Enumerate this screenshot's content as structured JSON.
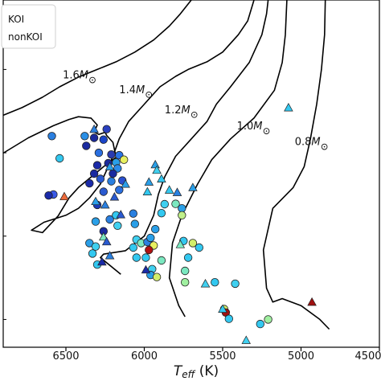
{
  "chart_data": {
    "type": "scatter",
    "title": "",
    "xlabel": "T_eff (K)",
    "xlabel_main": "T",
    "xlabel_sub": "eff",
    "xlabel_unit": " (K)",
    "x_reversed": true,
    "xlim": [
      6900,
      4500
    ],
    "ylim": [
      0,
      1
    ],
    "xticks": [
      6500,
      6000,
      5500,
      5000,
      4500
    ],
    "grid": false,
    "legend": {
      "placement": "top-left",
      "entries": [
        "KOI",
        "nonKOI"
      ]
    },
    "tracks": [
      {
        "label": "1.6M",
        "label_at": [
          6520,
          0.774
        ],
        "points": [
          [
            6900,
            0.668
          ],
          [
            6780,
            0.69
          ],
          [
            6650,
            0.72
          ],
          [
            6540,
            0.75
          ],
          [
            6420,
            0.778
          ],
          [
            6300,
            0.8
          ],
          [
            6180,
            0.822
          ],
          [
            6060,
            0.85
          ],
          [
            5940,
            0.885
          ],
          [
            5840,
            0.925
          ],
          [
            5770,
            0.96
          ],
          [
            5700,
            1.0
          ]
        ]
      },
      {
        "label": "1.4M",
        "label_at": [
          6160,
          0.732
        ],
        "points": [
          [
            6900,
            0.559
          ],
          [
            6740,
            0.603
          ],
          [
            6580,
            0.638
          ],
          [
            6480,
            0.656
          ],
          [
            6420,
            0.664
          ],
          [
            6340,
            0.66
          ],
          [
            6300,
            0.64
          ],
          [
            6320,
            0.62
          ],
          [
            6290,
            0.613
          ],
          [
            6250,
            0.619
          ],
          [
            6240,
            0.61
          ],
          [
            6200,
            0.59
          ],
          [
            6180,
            0.547
          ],
          [
            6260,
            0.52
          ],
          [
            6420,
            0.46
          ],
          [
            6480,
            0.43
          ],
          [
            6550,
            0.378
          ],
          [
            6650,
            0.33
          ],
          [
            6720,
            0.337
          ],
          [
            6640,
            0.36
          ],
          [
            6500,
            0.38
          ],
          [
            6420,
            0.4
          ],
          [
            6350,
            0.43
          ],
          [
            6280,
            0.47
          ],
          [
            6200,
            0.55
          ],
          [
            6160,
            0.6
          ],
          [
            6100,
            0.65
          ],
          [
            6000,
            0.7
          ],
          [
            5900,
            0.75
          ],
          [
            5800,
            0.78
          ],
          [
            5720,
            0.8
          ],
          [
            5600,
            0.822
          ],
          [
            5500,
            0.85
          ],
          [
            5400,
            0.9
          ],
          [
            5340,
            0.94
          ],
          [
            5300,
            1.0
          ]
        ]
      },
      {
        "label": "1.2M",
        "label_at": [
          5870,
          0.674
        ],
        "points": [
          [
            6150,
            0.21
          ],
          [
            6280,
            0.258
          ],
          [
            6260,
            0.268
          ],
          [
            6120,
            0.278
          ],
          [
            6000,
            0.32
          ],
          [
            5940,
            0.38
          ],
          [
            5910,
            0.44
          ],
          [
            5870,
            0.49
          ],
          [
            5800,
            0.55
          ],
          [
            5700,
            0.6
          ],
          [
            5600,
            0.65
          ],
          [
            5540,
            0.7
          ],
          [
            5450,
            0.75
          ],
          [
            5330,
            0.82
          ],
          [
            5250,
            0.9
          ],
          [
            5220,
            0.96
          ],
          [
            5210,
            1.0
          ]
        ]
      },
      {
        "label": "1.0M",
        "label_at": [
          5410,
          0.627
        ],
        "points": [
          [
            5740,
            0.088
          ],
          [
            5780,
            0.12
          ],
          [
            5840,
            0.2
          ],
          [
            5820,
            0.3
          ],
          [
            5760,
            0.38
          ],
          [
            5660,
            0.47
          ],
          [
            5570,
            0.54
          ],
          [
            5450,
            0.6
          ],
          [
            5300,
            0.66
          ],
          [
            5170,
            0.74
          ],
          [
            5120,
            0.82
          ],
          [
            5100,
            0.9
          ],
          [
            5090,
            1.0
          ]
        ]
      },
      {
        "label": "0.8M",
        "label_at": [
          5040,
          0.582
        ],
        "points": [
          [
            4820,
            0.052
          ],
          [
            4880,
            0.08
          ],
          [
            5000,
            0.12
          ],
          [
            5120,
            0.14
          ],
          [
            5180,
            0.13
          ],
          [
            5220,
            0.17
          ],
          [
            5240,
            0.28
          ],
          [
            5180,
            0.4
          ],
          [
            5050,
            0.46
          ],
          [
            4980,
            0.52
          ],
          [
            4940,
            0.6
          ],
          [
            4900,
            0.7
          ],
          [
            4870,
            0.8
          ],
          [
            4850,
            0.9
          ],
          [
            4845,
            1.0
          ]
        ]
      }
    ],
    "series": [
      {
        "name": "KOI",
        "marker": "circle",
        "points": [
          {
            "x": 6590,
            "y": 0.608,
            "c": "#2a7fe0"
          },
          {
            "x": 6540,
            "y": 0.544,
            "c": "#33c8f0"
          },
          {
            "x": 6580,
            "y": 0.44,
            "c": "#3a5ae8"
          },
          {
            "x": 6610,
            "y": 0.437,
            "c": "#1a2aa8"
          },
          {
            "x": 6380,
            "y": 0.608,
            "c": "#2a8fe6"
          },
          {
            "x": 6320,
            "y": 0.603,
            "c": "#1a2a9c"
          },
          {
            "x": 6260,
            "y": 0.598,
            "c": "#1a44c8"
          },
          {
            "x": 6240,
            "y": 0.628,
            "c": "#2a40c0"
          },
          {
            "x": 6370,
            "y": 0.58,
            "c": "#1a2aa0"
          },
          {
            "x": 6290,
            "y": 0.56,
            "c": "#2a6fe0"
          },
          {
            "x": 6210,
            "y": 0.555,
            "c": "#2a3ab0"
          },
          {
            "x": 6160,
            "y": 0.553,
            "c": "#2a74e6"
          },
          {
            "x": 6180,
            "y": 0.532,
            "c": "#2a9fe8"
          },
          {
            "x": 6130,
            "y": 0.54,
            "c": "#e8f060"
          },
          {
            "x": 6230,
            "y": 0.53,
            "c": "#1a2a9c"
          },
          {
            "x": 6300,
            "y": 0.524,
            "c": "#1a2aa8"
          },
          {
            "x": 6170,
            "y": 0.515,
            "c": "#2a8ae8"
          },
          {
            "x": 6200,
            "y": 0.5,
            "c": "#1a2aa0"
          },
          {
            "x": 6210,
            "y": 0.478,
            "c": "#2a7fe0"
          },
          {
            "x": 6280,
            "y": 0.485,
            "c": "#2a5ad0"
          },
          {
            "x": 6320,
            "y": 0.5,
            "c": "#1a2aa0"
          },
          {
            "x": 6140,
            "y": 0.48,
            "c": "#2a50d0"
          },
          {
            "x": 6160,
            "y": 0.453,
            "c": "#2a6fe0"
          },
          {
            "x": 6260,
            "y": 0.448,
            "c": "#2a5ad0"
          },
          {
            "x": 6350,
            "y": 0.472,
            "c": "#1a2aa8"
          },
          {
            "x": 6300,
            "y": 0.41,
            "c": "#1a3ab8"
          },
          {
            "x": 6310,
            "y": 0.362,
            "c": "#2aa0e8"
          },
          {
            "x": 6220,
            "y": 0.368,
            "c": "#2a80e0"
          },
          {
            "x": 6260,
            "y": 0.334,
            "c": "#1a2aa0"
          },
          {
            "x": 6180,
            "y": 0.38,
            "c": "#33c8f0"
          },
          {
            "x": 6170,
            "y": 0.35,
            "c": "#40d0f0"
          },
          {
            "x": 6350,
            "y": 0.3,
            "c": "#2a9fe8"
          },
          {
            "x": 6310,
            "y": 0.29,
            "c": "#40d0f0"
          },
          {
            "x": 6330,
            "y": 0.27,
            "c": "#33c8f0"
          },
          {
            "x": 6300,
            "y": 0.238,
            "c": "#33c8f0"
          },
          {
            "x": 6060,
            "y": 0.355,
            "c": "#2a9fe8"
          },
          {
            "x": 6070,
            "y": 0.385,
            "c": "#2a80e0"
          },
          {
            "x": 6050,
            "y": 0.31,
            "c": "#40d0f0"
          },
          {
            "x": 6020,
            "y": 0.3,
            "c": "#7be8c0"
          },
          {
            "x": 6070,
            "y": 0.287,
            "c": "#33c8f0"
          },
          {
            "x": 6050,
            "y": 0.258,
            "c": "#33c8f0"
          },
          {
            "x": 5980,
            "y": 0.303,
            "c": "#2a80e0"
          },
          {
            "x": 5960,
            "y": 0.315,
            "c": "#2a9fe8"
          },
          {
            "x": 5940,
            "y": 0.293,
            "c": "#e8f060"
          },
          {
            "x": 5970,
            "y": 0.28,
            "c": "#b01010"
          },
          {
            "x": 5990,
            "y": 0.258,
            "c": "#33c8f0"
          },
          {
            "x": 5950,
            "y": 0.225,
            "c": "#40d0f0"
          },
          {
            "x": 5960,
            "y": 0.208,
            "c": "#2a9fe8"
          },
          {
            "x": 5920,
            "y": 0.202,
            "c": "#d2ee6a"
          },
          {
            "x": 5890,
            "y": 0.25,
            "c": "#7be8c0"
          },
          {
            "x": 5930,
            "y": 0.34,
            "c": "#2a9fe8"
          },
          {
            "x": 5870,
            "y": 0.412,
            "c": "#40d0f0"
          },
          {
            "x": 5890,
            "y": 0.386,
            "c": "#33c8f0"
          },
          {
            "x": 5800,
            "y": 0.413,
            "c": "#7be8c0"
          },
          {
            "x": 5760,
            "y": 0.4,
            "c": "#2aa0e8"
          },
          {
            "x": 5760,
            "y": 0.38,
            "c": "#c0f08a"
          },
          {
            "x": 5750,
            "y": 0.306,
            "c": "#33c8f0"
          },
          {
            "x": 5690,
            "y": 0.3,
            "c": "#d2ee6a"
          },
          {
            "x": 5650,
            "y": 0.287,
            "c": "#33c8f0"
          },
          {
            "x": 5720,
            "y": 0.258,
            "c": "#33c8f0"
          },
          {
            "x": 5740,
            "y": 0.22,
            "c": "#7be8c0"
          },
          {
            "x": 5740,
            "y": 0.187,
            "c": "#a0f0a0"
          },
          {
            "x": 5550,
            "y": 0.187,
            "c": "#33c8f0"
          },
          {
            "x": 5490,
            "y": 0.11,
            "c": "#d2ee6a"
          },
          {
            "x": 5480,
            "y": 0.1,
            "c": "#a01010"
          },
          {
            "x": 5460,
            "y": 0.082,
            "c": "#33c8f0"
          },
          {
            "x": 5210,
            "y": 0.08,
            "c": "#a0f0a0"
          },
          {
            "x": 5260,
            "y": 0.067,
            "c": "#33c8f0"
          },
          {
            "x": 5420,
            "y": 0.183,
            "c": "#40d0f0"
          }
        ]
      },
      {
        "name": "nonKOI",
        "marker": "triangle",
        "points": [
          {
            "x": 6320,
            "y": 0.628,
            "c": "#2a80e0"
          },
          {
            "x": 6510,
            "y": 0.434,
            "c": "#ee6a3a"
          },
          {
            "x": 6310,
            "y": 0.42,
            "c": "#2a9fe8"
          },
          {
            "x": 6250,
            "y": 0.41,
            "c": "#2a80e0"
          },
          {
            "x": 6190,
            "y": 0.433,
            "c": "#2a5ad0"
          },
          {
            "x": 6260,
            "y": 0.318,
            "c": "#7be8c0"
          },
          {
            "x": 6240,
            "y": 0.304,
            "c": "#2a5ad0"
          },
          {
            "x": 6270,
            "y": 0.246,
            "c": "#1a2aa8"
          },
          {
            "x": 6220,
            "y": 0.264,
            "c": "#2a80e0"
          },
          {
            "x": 6150,
            "y": 0.382,
            "c": "#2a5ad0"
          },
          {
            "x": 6220,
            "y": 0.52,
            "c": "#2a9fe8"
          },
          {
            "x": 6120,
            "y": 0.47,
            "c": "#2a9fe8"
          },
          {
            "x": 5970,
            "y": 0.476,
            "c": "#2a9fe8"
          },
          {
            "x": 5930,
            "y": 0.526,
            "c": "#2a9fe8"
          },
          {
            "x": 5890,
            "y": 0.485,
            "c": "#33c8f0"
          },
          {
            "x": 5840,
            "y": 0.453,
            "c": "#33c8f0"
          },
          {
            "x": 5980,
            "y": 0.448,
            "c": "#33c8f0"
          },
          {
            "x": 5790,
            "y": 0.446,
            "c": "#2a80e0"
          },
          {
            "x": 5990,
            "y": 0.223,
            "c": "#1a2aa8"
          },
          {
            "x": 5920,
            "y": 0.51,
            "c": "#40d0f0"
          },
          {
            "x": 5770,
            "y": 0.296,
            "c": "#7be8c0"
          },
          {
            "x": 5690,
            "y": 0.46,
            "c": "#2a9fe8"
          },
          {
            "x": 5610,
            "y": 0.183,
            "c": "#40d0f0"
          },
          {
            "x": 5500,
            "y": 0.11,
            "c": "#33c8f0"
          },
          {
            "x": 5350,
            "y": 0.02,
            "c": "#40d0f0"
          },
          {
            "x": 4930,
            "y": 0.13,
            "c": "#a01010"
          },
          {
            "x": 5080,
            "y": 0.69,
            "c": "#33c8f0"
          }
        ]
      }
    ]
  }
}
